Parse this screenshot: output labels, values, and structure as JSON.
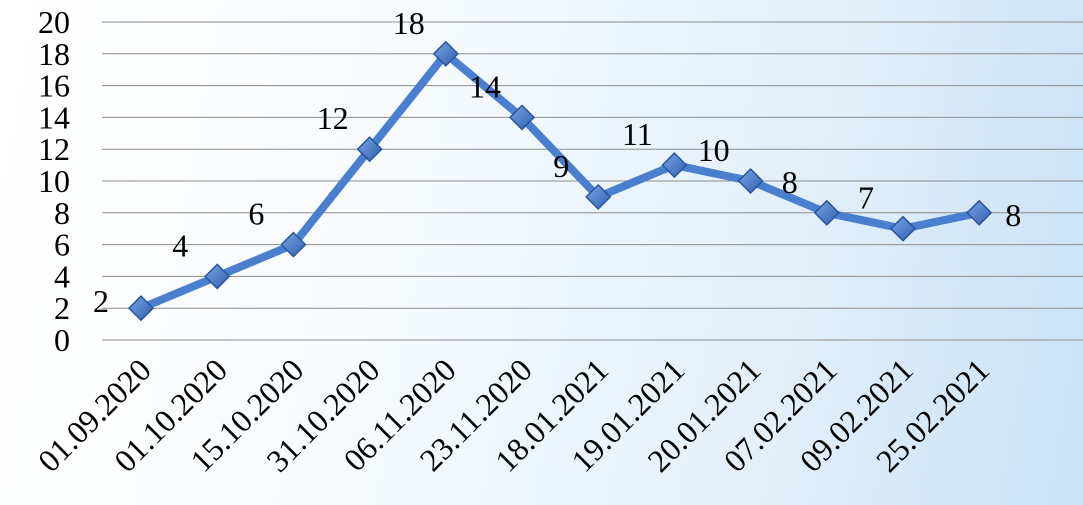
{
  "chart_data": {
    "type": "line",
    "categories": [
      "01.09.2020",
      "01.10.2020",
      "15.10.2020",
      "31.10.2020",
      "06.11.2020",
      "23.11.2020",
      "18.01.2021",
      "19.01.2021",
      "20.01.2021",
      "07.02.2021",
      "09.02.2021",
      "25.02.2021"
    ],
    "series": [
      {
        "values": [
          2,
          4,
          6,
          12,
          18,
          14,
          9,
          11,
          10,
          8,
          7,
          8
        ]
      }
    ],
    "y_ticks": [
      "0",
      "2",
      "4",
      "6",
      "8",
      "10",
      "12",
      "14",
      "16",
      "18",
      "20"
    ],
    "data_labels": [
      "2",
      "4",
      "6",
      "12",
      "18",
      "14",
      "9",
      "11",
      "10",
      "8",
      "7",
      "8"
    ],
    "ylim": [
      0,
      20
    ],
    "grid": true,
    "legend": "none",
    "colors": {
      "line": "#4a7fd0",
      "marker": "#3f74c4",
      "grid": "#8c8c8c"
    }
  }
}
